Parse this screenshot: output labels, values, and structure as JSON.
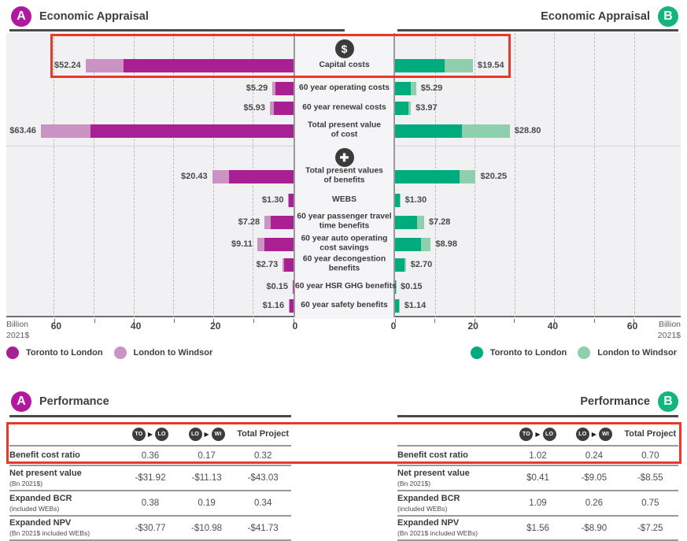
{
  "colors": {
    "a_dark": "#a92092",
    "a_light": "#cb92c4",
    "b_dark": "#00ab7d",
    "b_light": "#8fcfad",
    "badge_a": "#b0189e",
    "badge_b": "#12b57e",
    "highlight_red": "#e6392c"
  },
  "header_a": {
    "badge": "A",
    "title": "Economic Appraisal"
  },
  "header_b": {
    "badge": "B",
    "title": "Economic Appraisal"
  },
  "perf_a": {
    "badge": "A",
    "title": "Performance"
  },
  "perf_b": {
    "badge": "B",
    "title": "Performance"
  },
  "axis": {
    "unit_line1": "Billion",
    "unit_line2": "2021$",
    "ticks": [
      0,
      20,
      40,
      60
    ]
  },
  "legend_a": [
    {
      "label": "Toronto to London",
      "color_key": "a_dark"
    },
    {
      "label": "London to Windsor",
      "color_key": "a_light"
    }
  ],
  "legend_b": [
    {
      "label": "Toronto to London",
      "color_key": "b_dark"
    },
    {
      "label": "London to Windsor",
      "color_key": "b_light"
    }
  ],
  "chart_data": {
    "type": "bar",
    "layout": "butterfly",
    "unit": "Billion 2021$",
    "axis_range": [
      0,
      60
    ],
    "gridline_step": 10,
    "series_names": [
      "Toronto to London",
      "London to Windsor"
    ],
    "sections": {
      "costs_rows": [
        0,
        3
      ],
      "benefits_rows": [
        4,
        10
      ]
    },
    "rows": [
      {
        "label": "Capital costs",
        "icon": "dollar",
        "a": {
          "total_label": "$52.24",
          "total": 52.24,
          "toronto_london": 42.74,
          "london_windsor": 9.5
        },
        "b": {
          "total_label": "$19.54",
          "total": 19.54,
          "toronto_london": 12.4,
          "london_windsor": 7.14
        }
      },
      {
        "label": "60 year operating costs",
        "a": {
          "total_label": "$5.29",
          "total": 5.29,
          "toronto_london": 4.5,
          "london_windsor": 0.79
        },
        "b": {
          "total_label": "$5.29",
          "total": 5.29,
          "toronto_london": 4.0,
          "london_windsor": 1.29
        }
      },
      {
        "label": "60 year renewal costs",
        "a": {
          "total_label": "$5.93",
          "total": 5.93,
          "toronto_london": 5.0,
          "london_windsor": 0.93
        },
        "b": {
          "total_label": "$3.97",
          "total": 3.97,
          "toronto_london": 3.4,
          "london_windsor": 0.57
        }
      },
      {
        "label": "Total present value\nof cost",
        "a": {
          "total_label": "$63.46",
          "total": 63.46,
          "toronto_london": 51.0,
          "london_windsor": 12.46
        },
        "b": {
          "total_label": "$28.80",
          "total": 28.8,
          "toronto_london": 16.8,
          "london_windsor": 12.0
        }
      },
      {
        "label": "Total present values\nof benefits",
        "icon": "plus",
        "a": {
          "total_label": "$20.43",
          "total": 20.43,
          "toronto_london": 16.2,
          "london_windsor": 4.23
        },
        "b": {
          "total_label": "$20.25",
          "total": 20.25,
          "toronto_london": 16.3,
          "london_windsor": 3.95
        }
      },
      {
        "label": "WEBS",
        "a": {
          "total_label": "$1.30",
          "total": 1.3,
          "toronto_london": 1.2,
          "london_windsor": 0.1
        },
        "b": {
          "total_label": "$1.30",
          "total": 1.3,
          "toronto_london": 1.2,
          "london_windsor": 0.1
        }
      },
      {
        "label": "60 year passenger travel\ntime benefits",
        "a": {
          "total_label": "$7.28",
          "total": 7.28,
          "toronto_london": 5.8,
          "london_windsor": 1.48
        },
        "b": {
          "total_label": "$7.28",
          "total": 7.28,
          "toronto_london": 5.5,
          "london_windsor": 1.78
        }
      },
      {
        "label": "60 year auto operating\ncost savings",
        "a": {
          "total_label": "$9.11",
          "total": 9.11,
          "toronto_london": 7.3,
          "london_windsor": 1.81
        },
        "b": {
          "total_label": "$8.98",
          "total": 8.98,
          "toronto_london": 6.5,
          "london_windsor": 2.48
        }
      },
      {
        "label": "60 year decongestion\nbenefits",
        "a": {
          "total_label": "$2.73",
          "total": 2.73,
          "toronto_london": 2.4,
          "london_windsor": 0.33
        },
        "b": {
          "total_label": "$2.70",
          "total": 2.7,
          "toronto_london": 2.4,
          "london_windsor": 0.3
        }
      },
      {
        "label": "60 year HSR GHG benefits",
        "a": {
          "total_label": "$0.15",
          "total": 0.15,
          "toronto_london": 0.13,
          "london_windsor": 0.02
        },
        "b": {
          "total_label": "$0.15",
          "total": 0.15,
          "toronto_london": 0.13,
          "london_windsor": 0.02
        }
      },
      {
        "label": "60 year safety benefits",
        "a": {
          "total_label": "$1.16",
          "total": 1.16,
          "toronto_london": 1.0,
          "london_windsor": 0.16
        },
        "b": {
          "total_label": "$1.14",
          "total": 1.14,
          "toronto_london": 1.0,
          "london_windsor": 0.14
        }
      }
    ]
  },
  "performance_header": {
    "route1": [
      "TO",
      "LO"
    ],
    "route2": [
      "LO",
      "WI"
    ],
    "total_col": "Total Project"
  },
  "table_a": {
    "rows": [
      {
        "label": "Benefit cost ratio",
        "sub": "",
        "values": [
          "0.36",
          "0.17",
          "0.32"
        ]
      },
      {
        "label": "Net present value",
        "sub": "(Bn 2021$)",
        "values": [
          "-$31.92",
          "-$11.13",
          "-$43.03"
        ]
      },
      {
        "label": "Expanded BCR",
        "sub": "(included WEBs)",
        "values": [
          "0.38",
          "0.19",
          "0.34"
        ]
      },
      {
        "label": "Expanded NPV",
        "sub": "(Bn 2021$ included WEBs)",
        "values": [
          "-$30.77",
          "-$10.98",
          "-$41.73"
        ]
      }
    ]
  },
  "table_b": {
    "rows": [
      {
        "label": "Benefit cost ratio",
        "sub": "",
        "values": [
          "1.02",
          "0.24",
          "0.70"
        ]
      },
      {
        "label": "Net present value",
        "sub": "(Bn 2021$)",
        "values": [
          "$0.41",
          "-$9.05",
          "-$8.55"
        ]
      },
      {
        "label": "Expanded BCR",
        "sub": "(included WEBs)",
        "values": [
          "1.09",
          "0.26",
          "0.75"
        ]
      },
      {
        "label": "Expanded NPV",
        "sub": "(Bn 2021$ included WEBs)",
        "values": [
          "$1.56",
          "-$8.90",
          "-$7.25"
        ]
      }
    ]
  }
}
